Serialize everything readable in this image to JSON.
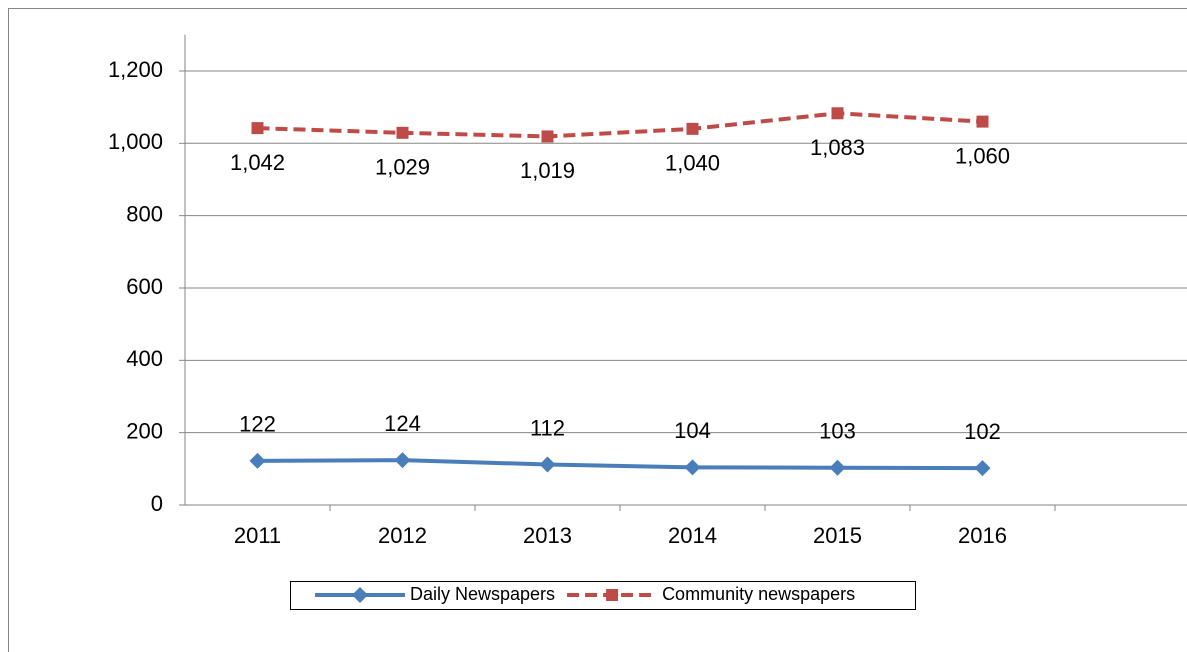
{
  "chart_data": {
    "type": "line",
    "categories": [
      "2011",
      "2012",
      "2013",
      "2014",
      "2015",
      "2016",
      null
    ],
    "series": [
      {
        "name": "Daily Newspapers",
        "color": "#4a7ebb",
        "dash": false,
        "marker": "diamond",
        "values": [
          122,
          124,
          112,
          104,
          103,
          102,
          null
        ]
      },
      {
        "name": "Community newspapers",
        "color": "#be4b48",
        "dash": true,
        "marker": "square",
        "values": [
          1042,
          1029,
          1019,
          1040,
          1083,
          1060,
          null
        ],
        "value_labels": [
          "1,042",
          "1,029",
          "1,019",
          "1,040",
          "1,083",
          "1,060",
          null
        ]
      }
    ],
    "ylim": [
      0,
      1300
    ],
    "yticks": [
      0,
      200,
      400,
      600,
      800,
      {
        "value": 1000,
        "label": "1,000"
      },
      {
        "value": 1200,
        "label": "1,200"
      }
    ],
    "grid": true,
    "legend": "bottom"
  }
}
